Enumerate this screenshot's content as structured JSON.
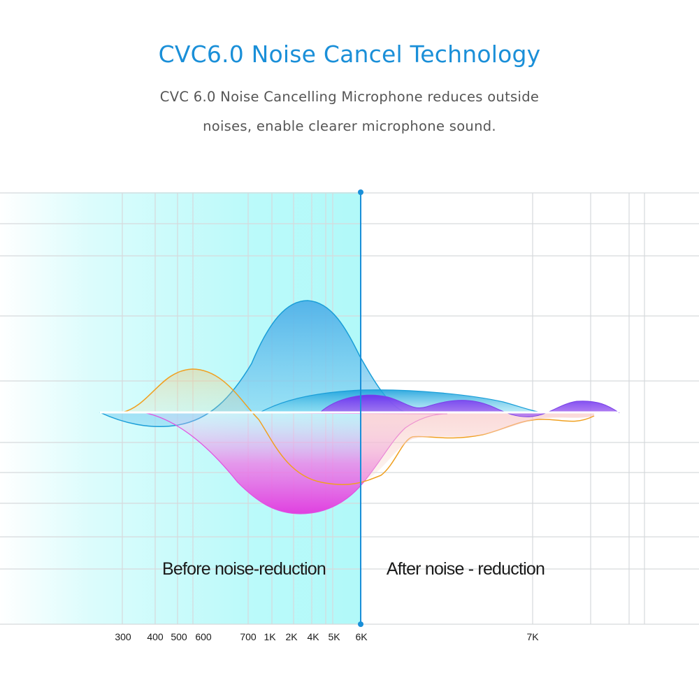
{
  "header": {
    "title": "CVC6.0 Noise Cancel Technology",
    "subtitle_line1": "CVC 6.0 Noise Cancelling Microphone reduces outside",
    "subtitle_line2": "noises, enable clearer microphone sound."
  },
  "chart_data": {
    "type": "area",
    "x_ticks": [
      "300",
      "400",
      "500",
      "600",
      "700",
      "1K",
      "2K",
      "4K",
      "5K",
      "6K",
      "7K"
    ],
    "divider_at": "6K",
    "regions": [
      {
        "label": "Before noise-reduction",
        "side": "left"
      },
      {
        "label": "After noise - reduction",
        "side": "right"
      }
    ],
    "grid": true,
    "colors": {
      "blue": "#1a9ed8",
      "orange": "#f0a020",
      "magenta": "#e85ae0",
      "purple": "#7a40e8",
      "divider": "#1a8fd8",
      "highlight": "#3cf0f0"
    }
  }
}
